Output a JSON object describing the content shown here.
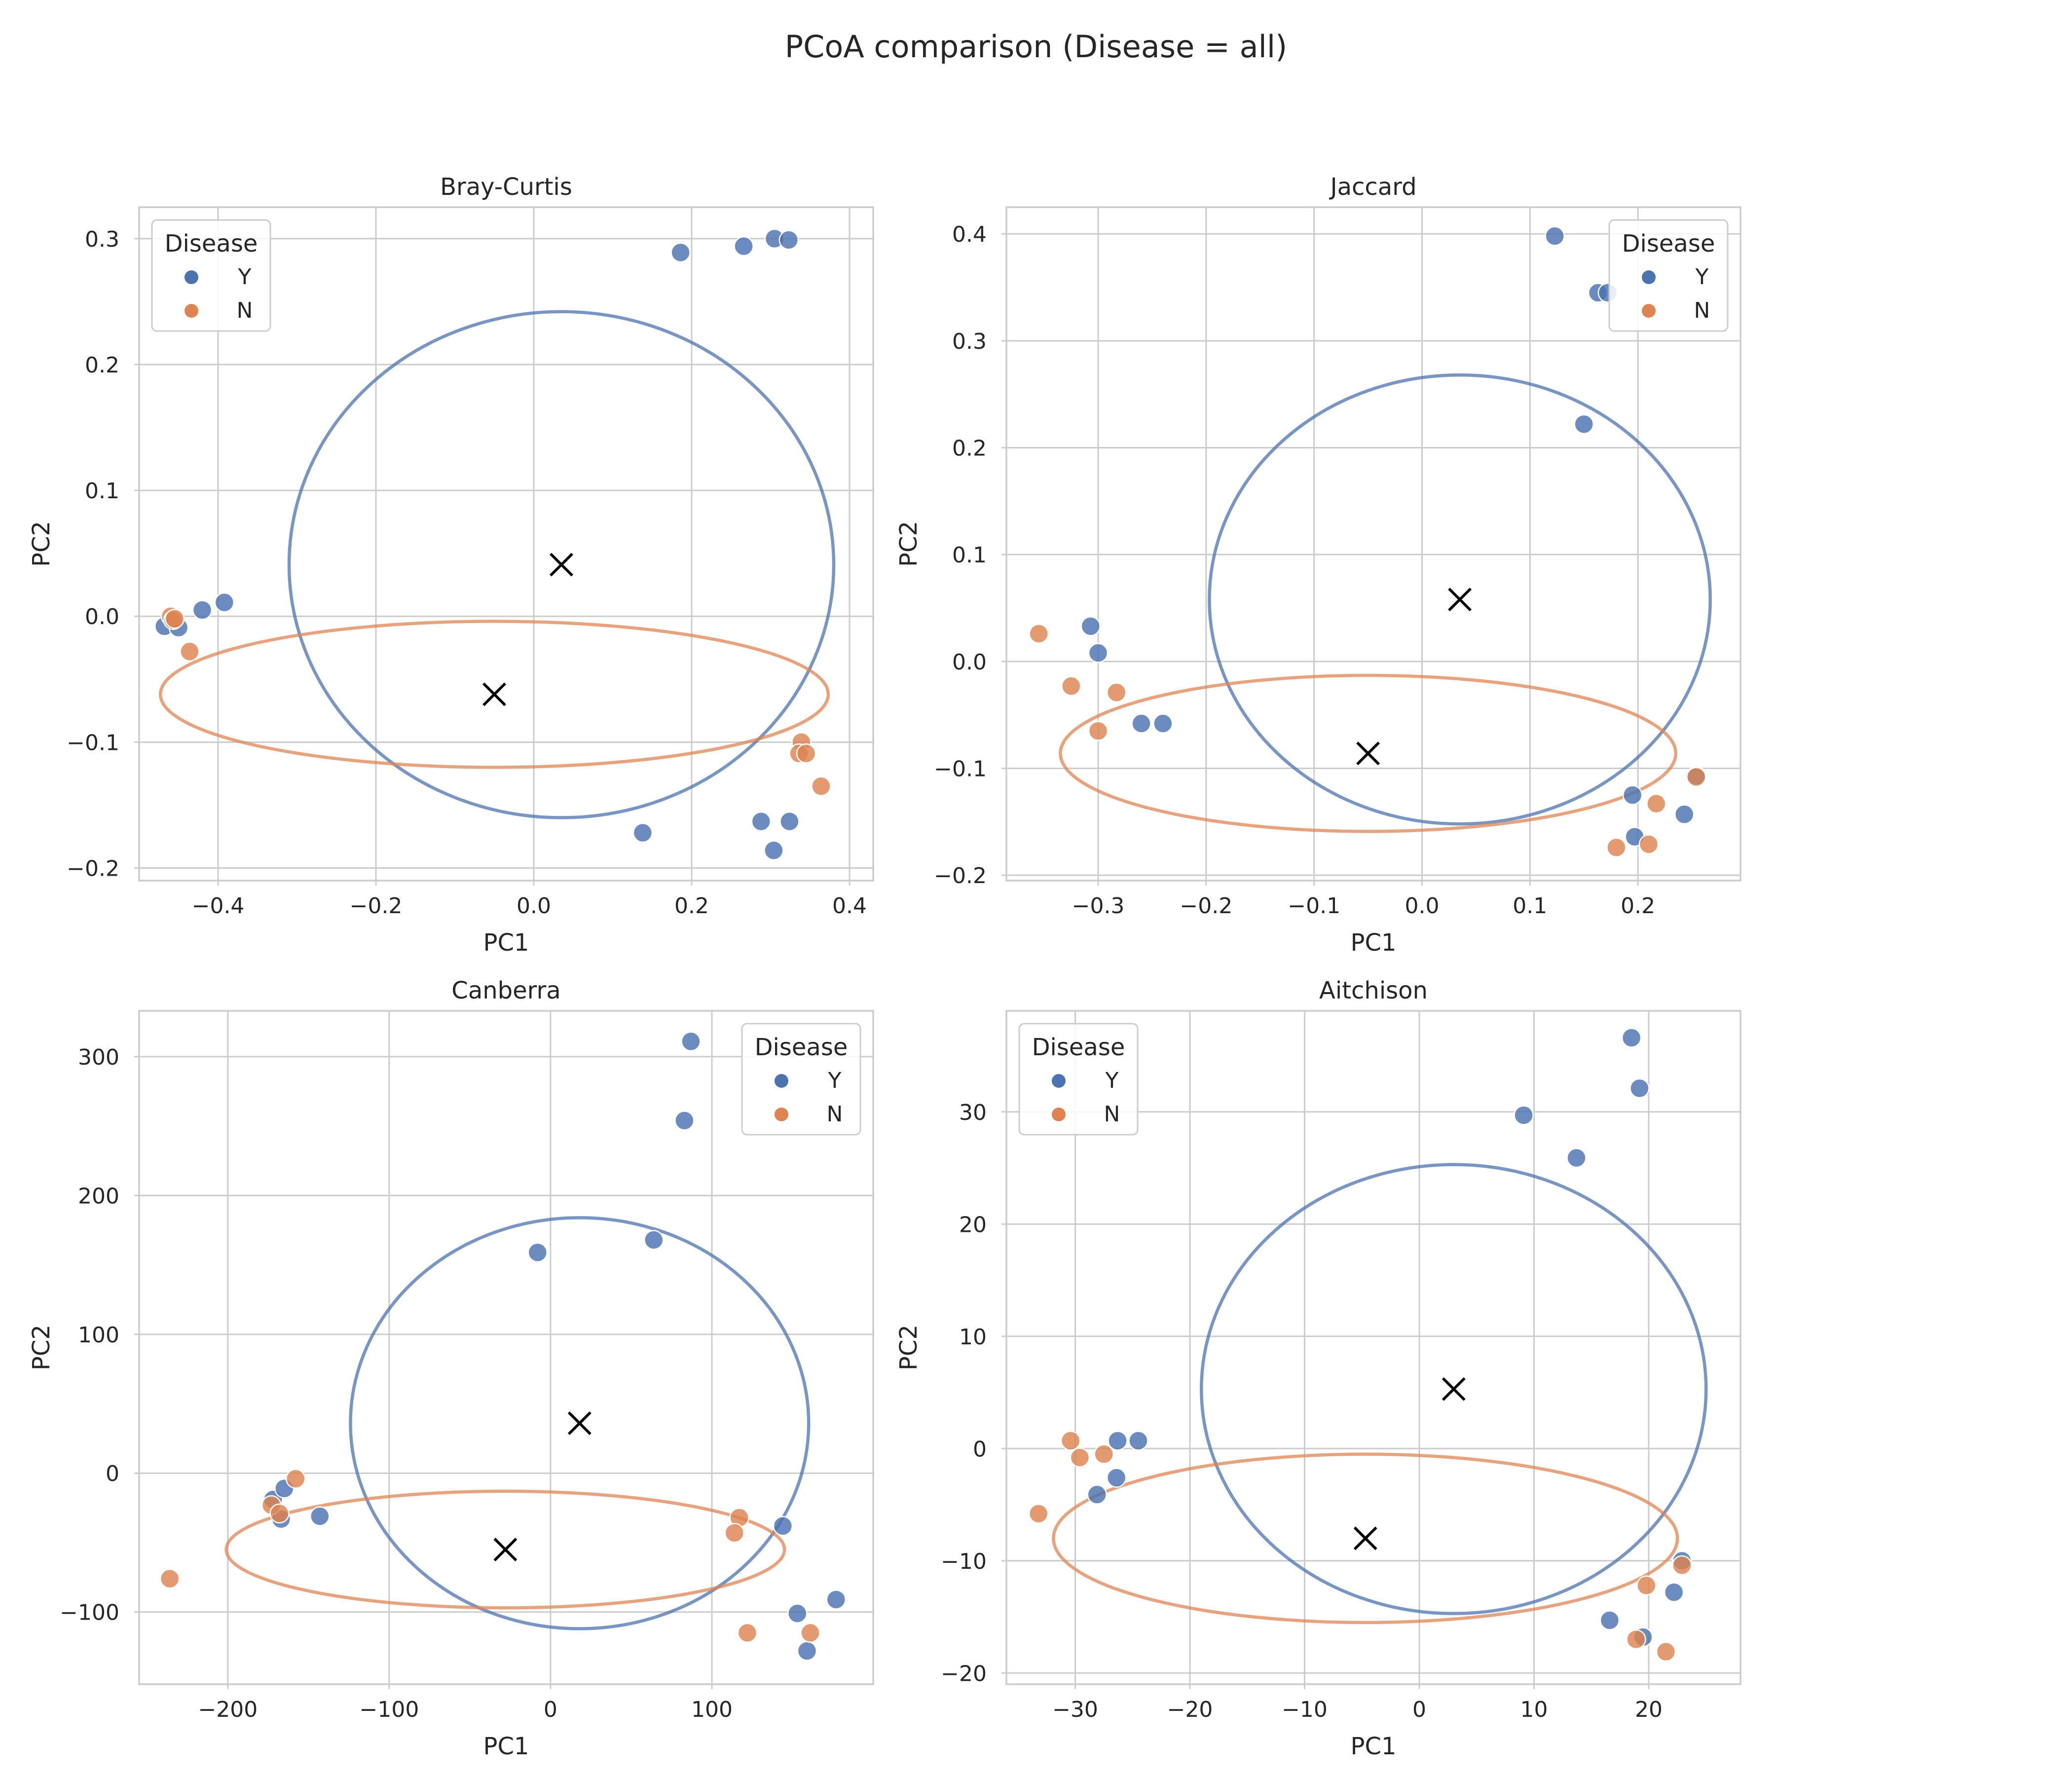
{
  "figure": {
    "title": "PCoA comparison (Disease = all)"
  },
  "colors": {
    "Y": "#4c72b0",
    "N": "#dd8452",
    "centroid": "#000000",
    "grid": "#cccccc",
    "frame": "#cccccc"
  },
  "chart_data": [
    {
      "type": "scatter",
      "title": "Bray-Curtis",
      "xlabel": "PC1",
      "ylabel": "PC2",
      "xlim": [
        -0.5,
        0.43
      ],
      "ylim": [
        -0.21,
        0.325
      ],
      "xticks": [
        -0.4,
        -0.2,
        0.0,
        0.2,
        0.4
      ],
      "xtick_labels": [
        "−0.4",
        "−0.2",
        "0.0",
        "0.2",
        "0.4"
      ],
      "yticks": [
        -0.2,
        -0.1,
        0.0,
        0.1,
        0.2,
        0.3
      ],
      "ytick_labels": [
        "−0.2",
        "−0.1",
        "0.0",
        "0.1",
        "0.2",
        "0.3"
      ],
      "grid": true,
      "legend": {
        "title": "Disease",
        "position": "upper left",
        "entries": [
          "Y",
          "N"
        ]
      },
      "series": [
        {
          "name": "Y",
          "x": [
            0.186,
            0.266,
            0.305,
            0.323,
            0.138,
            0.288,
            0.304,
            0.324,
            -0.392,
            -0.42,
            -0.468,
            -0.45
          ],
          "y": [
            0.289,
            0.294,
            0.3,
            0.299,
            -0.172,
            -0.163,
            -0.186,
            -0.163,
            0.011,
            0.005,
            -0.008,
            -0.009
          ]
        },
        {
          "name": "N",
          "x": [
            -0.46,
            -0.457,
            -0.455,
            -0.436,
            0.339,
            0.336,
            0.345,
            0.364
          ],
          "y": [
            0.0,
            -0.003,
            -0.002,
            -0.028,
            -0.1,
            -0.109,
            -0.109,
            -0.135
          ]
        }
      ],
      "centroids": [
        {
          "group": "Y",
          "x": 0.035,
          "y": 0.041
        },
        {
          "group": "N",
          "x": -0.05,
          "y": -0.062
        }
      ],
      "ellipses": [
        {
          "group": "Y",
          "cx": 0.035,
          "cy": 0.041,
          "rx": 0.345,
          "ry": 0.201
        },
        {
          "group": "N",
          "cx": -0.05,
          "cy": -0.062,
          "rx": 0.423,
          "ry": 0.058
        }
      ]
    },
    {
      "type": "scatter",
      "title": "Jaccard",
      "xlabel": "PC1",
      "ylabel": "PC2",
      "xlim": [
        -0.385,
        0.295
      ],
      "ylim": [
        -0.205,
        0.425
      ],
      "xticks": [
        -0.3,
        -0.2,
        -0.1,
        0.0,
        0.1,
        0.2
      ],
      "xtick_labels": [
        "−0.3",
        "−0.2",
        "−0.1",
        "0.0",
        "0.1",
        "0.2"
      ],
      "yticks": [
        -0.2,
        -0.1,
        0.0,
        0.1,
        0.2,
        0.3,
        0.4
      ],
      "ytick_labels": [
        "−0.2",
        "−0.1",
        "0.0",
        "0.1",
        "0.2",
        "0.3",
        "0.4"
      ],
      "grid": true,
      "legend": {
        "title": "Disease",
        "position": "upper right",
        "entries": [
          "Y",
          "N"
        ]
      },
      "series": [
        {
          "name": "Y",
          "x": [
            0.123,
            0.163,
            0.172,
            0.15,
            -0.307,
            -0.3,
            -0.26,
            -0.24,
            0.195,
            0.197,
            0.243,
            0.254
          ],
          "y": [
            0.398,
            0.345,
            0.345,
            0.222,
            0.033,
            0.008,
            -0.058,
            -0.058,
            -0.125,
            -0.164,
            -0.143,
            -0.107
          ]
        },
        {
          "name": "N",
          "x": [
            -0.355,
            -0.325,
            -0.3,
            -0.283,
            0.217,
            0.18,
            0.21,
            0.254
          ],
          "y": [
            0.026,
            -0.023,
            -0.065,
            -0.029,
            -0.133,
            -0.174,
            -0.171,
            -0.108
          ]
        }
      ],
      "centroids": [
        {
          "group": "Y",
          "x": 0.035,
          "y": 0.058
        },
        {
          "group": "N",
          "x": -0.05,
          "y": -0.086
        }
      ],
      "ellipses": [
        {
          "group": "Y",
          "cx": 0.035,
          "cy": 0.058,
          "rx": 0.232,
          "ry": 0.21
        },
        {
          "group": "N",
          "cx": -0.05,
          "cy": -0.086,
          "rx": 0.285,
          "ry": 0.073
        }
      ]
    },
    {
      "type": "scatter",
      "title": "Canberra",
      "xlabel": "PC1",
      "ylabel": "PC2",
      "xlim": [
        -255,
        200
      ],
      "ylim": [
        -152,
        333
      ],
      "xticks": [
        -200,
        -100,
        0,
        100
      ],
      "xtick_labels": [
        "−200",
        "−100",
        "0",
        "100"
      ],
      "yticks": [
        -100,
        0,
        100,
        200,
        300
      ],
      "ytick_labels": [
        "−100",
        "0",
        "100",
        "200",
        "300"
      ],
      "grid": true,
      "legend": {
        "title": "Disease",
        "position": "upper right",
        "entries": [
          "Y",
          "N"
        ]
      },
      "series": [
        {
          "name": "Y",
          "x": [
            87,
            83,
            -8,
            64,
            -172,
            -165,
            -167,
            -143,
            144,
            177,
            153,
            159
          ],
          "y": [
            311,
            254,
            159,
            168,
            -19,
            -11,
            -33,
            -31,
            -38,
            -91,
            -101,
            -128
          ]
        },
        {
          "name": "N",
          "x": [
            -236,
            -173,
            -158,
            -168,
            117,
            114,
            122,
            161
          ],
          "y": [
            -76,
            -23,
            -4,
            -29,
            -32,
            -43,
            -115,
            -115
          ]
        }
      ],
      "centroids": [
        {
          "group": "Y",
          "x": 18,
          "y": 36
        },
        {
          "group": "N",
          "x": -28,
          "y": -55
        }
      ],
      "ellipses": [
        {
          "group": "Y",
          "cx": 18,
          "cy": 36,
          "rx": 142,
          "ry": 148
        },
        {
          "group": "N",
          "cx": -28,
          "cy": -55,
          "rx": 173,
          "ry": 42
        }
      ]
    },
    {
      "type": "scatter",
      "title": "Aitchison",
      "xlabel": "PC1",
      "ylabel": "PC2",
      "xlim": [
        -36,
        28
      ],
      "ylim": [
        -21,
        39
      ],
      "xticks": [
        -30,
        -20,
        -10,
        0,
        10,
        20
      ],
      "xtick_labels": [
        "−30",
        "−20",
        "−10",
        "0",
        "10",
        "20"
      ],
      "yticks": [
        -20,
        -10,
        0,
        10,
        20,
        30
      ],
      "ytick_labels": [
        "−20",
        "−10",
        "0",
        "10",
        "20",
        "30"
      ],
      "grid": true,
      "legend": {
        "title": "Disease",
        "position": "upper left",
        "entries": [
          "Y",
          "N"
        ]
      },
      "series": [
        {
          "name": "Y",
          "x": [
            18.5,
            19.2,
            9.1,
            13.7,
            -26.3,
            -24.5,
            -26.4,
            -28.1,
            22.9,
            22.2,
            16.6,
            19.5
          ],
          "y": [
            36.6,
            32.1,
            29.7,
            25.9,
            0.7,
            0.7,
            -2.6,
            -4.1,
            -10.0,
            -12.8,
            -15.3,
            -16.8
          ]
        },
        {
          "name": "N",
          "x": [
            -30.4,
            -29.6,
            -27.5,
            -33.2,
            22.9,
            19.8,
            18.9,
            21.5
          ],
          "y": [
            0.7,
            -0.8,
            -0.5,
            -5.8,
            -10.4,
            -12.2,
            -17.0,
            -18.1
          ]
        }
      ],
      "centroids": [
        {
          "group": "Y",
          "x": 3.0,
          "y": 5.3
        },
        {
          "group": "N",
          "x": -4.7,
          "y": -8.0
        }
      ],
      "ellipses": [
        {
          "group": "Y",
          "cx": 3.0,
          "cy": 5.3,
          "rx": 22.0,
          "ry": 20.0
        },
        {
          "group": "N",
          "cx": -4.7,
          "cy": -8.0,
          "rx": 27.2,
          "ry": 7.5
        }
      ]
    }
  ]
}
